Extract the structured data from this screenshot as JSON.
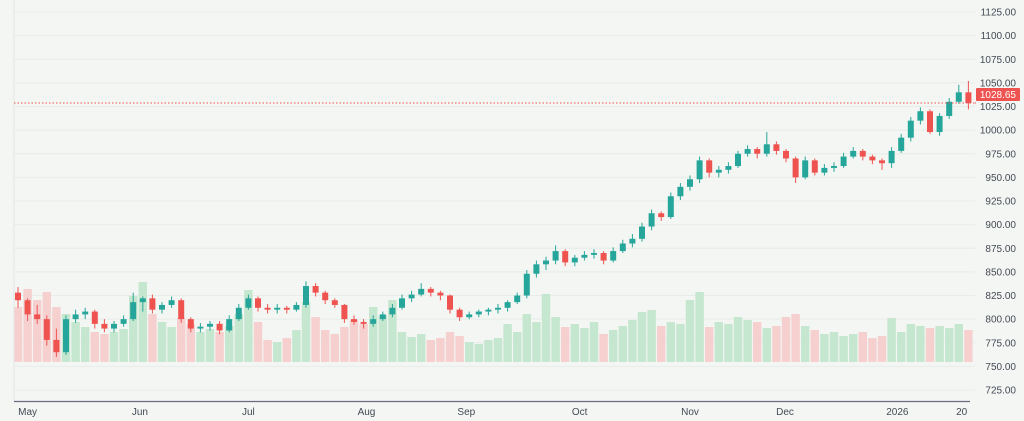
{
  "chart_data": {
    "type": "candlestick",
    "title": "",
    "xlabel": "",
    "ylabel": "",
    "ylim": [
      725,
      1125
    ],
    "y_ticks": [
      "725.00",
      "750.00",
      "775.00",
      "800.00",
      "825.00",
      "850.00",
      "875.00",
      "900.00",
      "925.00",
      "950.00",
      "975.00",
      "1000.00",
      "1025.00",
      "1050.00",
      "1075.00",
      "1100.00",
      "1125.00"
    ],
    "x_ticks": [
      {
        "label": "May",
        "at": 1
      },
      {
        "label": "Jun",
        "at": 12.7
      },
      {
        "label": "Jul",
        "at": 24
      },
      {
        "label": "Aug",
        "at": 36.3
      },
      {
        "label": "Sep",
        "at": 46.7
      },
      {
        "label": "Oct",
        "at": 58.5
      },
      {
        "label": "Nov",
        "at": 70
      },
      {
        "label": "Dec",
        "at": 79.9
      },
      {
        "label": "2026",
        "at": 91.6
      },
      {
        "label": "20",
        "at": 98.3
      }
    ],
    "last_price": "1028.65",
    "grid": true,
    "colors": {
      "up": "#26a69a",
      "down": "#ef5350",
      "up_volume": "#c5e6cf",
      "down_volume": "#f6cfcf",
      "background": "#f3f6f3",
      "last_price": "#ef5350"
    },
    "columns": [
      "open",
      "high",
      "low",
      "close",
      "volume"
    ],
    "candles": [
      [
        828,
        834,
        812,
        820,
        55
      ],
      [
        820,
        822,
        798,
        805,
        73
      ],
      [
        805,
        815,
        795,
        800,
        62
      ],
      [
        800,
        804,
        772,
        778,
        70
      ],
      [
        778,
        790,
        760,
        765,
        55
      ],
      [
        765,
        804,
        762,
        800,
        48
      ],
      [
        800,
        810,
        796,
        805,
        40
      ],
      [
        805,
        812,
        800,
        808,
        35
      ],
      [
        808,
        810,
        790,
        795,
        30
      ],
      [
        795,
        800,
        786,
        790,
        28
      ],
      [
        790,
        798,
        786,
        795,
        30
      ],
      [
        795,
        804,
        792,
        800,
        33
      ],
      [
        800,
        828,
        798,
        818,
        66
      ],
      [
        818,
        824,
        808,
        822,
        80
      ],
      [
        822,
        826,
        806,
        810,
        48
      ],
      [
        810,
        818,
        806,
        815,
        40
      ],
      [
        815,
        824,
        812,
        820,
        35
      ],
      [
        820,
        822,
        796,
        800,
        44
      ],
      [
        800,
        802,
        786,
        790,
        38
      ],
      [
        790,
        796,
        786,
        792,
        30
      ],
      [
        792,
        798,
        788,
        795,
        33
      ],
      [
        795,
        798,
        784,
        788,
        30
      ],
      [
        788,
        804,
        786,
        800,
        36
      ],
      [
        800,
        816,
        798,
        812,
        48
      ],
      [
        812,
        826,
        810,
        822,
        72
      ],
      [
        822,
        824,
        808,
        812,
        40
      ],
      [
        812,
        816,
        806,
        810,
        22
      ],
      [
        810,
        816,
        806,
        812,
        20
      ],
      [
        812,
        814,
        806,
        810,
        24
      ],
      [
        810,
        818,
        808,
        815,
        32
      ],
      [
        815,
        840,
        812,
        835,
        60
      ],
      [
        835,
        838,
        824,
        828,
        45
      ],
      [
        828,
        830,
        816,
        820,
        32
      ],
      [
        820,
        822,
        812,
        815,
        28
      ],
      [
        815,
        816,
        796,
        800,
        35
      ],
      [
        800,
        804,
        794,
        797,
        42
      ],
      [
        797,
        800,
        790,
        795,
        38
      ],
      [
        795,
        804,
        792,
        800,
        55
      ],
      [
        800,
        808,
        798,
        805,
        47
      ],
      [
        805,
        816,
        802,
        812,
        62
      ],
      [
        812,
        826,
        810,
        822,
        30
      ],
      [
        822,
        830,
        818,
        826,
        25
      ],
      [
        826,
        838,
        824,
        832,
        28
      ],
      [
        832,
        834,
        824,
        828,
        22
      ],
      [
        828,
        830,
        820,
        825,
        24
      ],
      [
        825,
        826,
        806,
        810,
        30
      ],
      [
        810,
        812,
        798,
        802,
        26
      ],
      [
        802,
        808,
        800,
        805,
        20
      ],
      [
        805,
        810,
        802,
        808,
        18
      ],
      [
        808,
        812,
        804,
        810,
        22
      ],
      [
        810,
        816,
        806,
        812,
        24
      ],
      [
        812,
        820,
        808,
        818,
        38
      ],
      [
        818,
        828,
        816,
        825,
        30
      ],
      [
        825,
        852,
        822,
        848,
        48
      ],
      [
        848,
        862,
        844,
        858,
        40
      ],
      [
        858,
        866,
        852,
        862,
        68
      ],
      [
        862,
        878,
        858,
        872,
        45
      ],
      [
        872,
        874,
        856,
        860,
        35
      ],
      [
        860,
        868,
        856,
        865,
        38
      ],
      [
        865,
        872,
        862,
        868,
        34
      ],
      [
        868,
        874,
        864,
        870,
        40
      ],
      [
        870,
        872,
        858,
        862,
        28
      ],
      [
        862,
        876,
        860,
        872,
        32
      ],
      [
        872,
        884,
        870,
        880,
        36
      ],
      [
        880,
        890,
        876,
        885,
        42
      ],
      [
        885,
        902,
        882,
        898,
        50
      ],
      [
        898,
        916,
        894,
        912,
        52
      ],
      [
        912,
        914,
        904,
        908,
        36
      ],
      [
        908,
        934,
        906,
        930,
        40
      ],
      [
        930,
        944,
        926,
        940,
        38
      ],
      [
        940,
        952,
        936,
        948,
        62
      ],
      [
        948,
        972,
        944,
        968,
        70
      ],
      [
        968,
        970,
        950,
        955,
        35
      ],
      [
        955,
        962,
        950,
        958,
        40
      ],
      [
        958,
        966,
        954,
        962,
        38
      ],
      [
        962,
        978,
        960,
        975,
        45
      ],
      [
        975,
        984,
        972,
        980,
        42
      ],
      [
        980,
        982,
        970,
        975,
        40
      ],
      [
        975,
        998,
        972,
        985,
        34
      ],
      [
        985,
        988,
        974,
        978,
        36
      ],
      [
        978,
        980,
        966,
        970,
        45
      ],
      [
        970,
        972,
        944,
        950,
        48
      ],
      [
        950,
        972,
        948,
        968,
        36
      ],
      [
        968,
        970,
        952,
        955,
        32
      ],
      [
        955,
        964,
        952,
        960,
        28
      ],
      [
        960,
        966,
        956,
        962,
        30
      ],
      [
        962,
        976,
        960,
        972,
        26
      ],
      [
        972,
        982,
        970,
        978,
        28
      ],
      [
        978,
        980,
        968,
        972,
        30
      ],
      [
        972,
        974,
        964,
        968,
        24
      ],
      [
        968,
        970,
        958,
        965,
        26
      ],
      [
        965,
        982,
        960,
        978,
        44
      ],
      [
        978,
        996,
        976,
        992,
        30
      ],
      [
        992,
        1014,
        988,
        1010,
        38
      ],
      [
        1010,
        1024,
        1006,
        1020,
        36
      ],
      [
        1020,
        1022,
        996,
        998,
        34
      ],
      [
        998,
        1018,
        994,
        1015,
        36
      ],
      [
        1015,
        1034,
        1012,
        1030,
        34
      ],
      [
        1030,
        1048,
        1028,
        1040,
        38
      ],
      [
        1040,
        1052,
        1022,
        1028.65,
        32
      ]
    ]
  }
}
